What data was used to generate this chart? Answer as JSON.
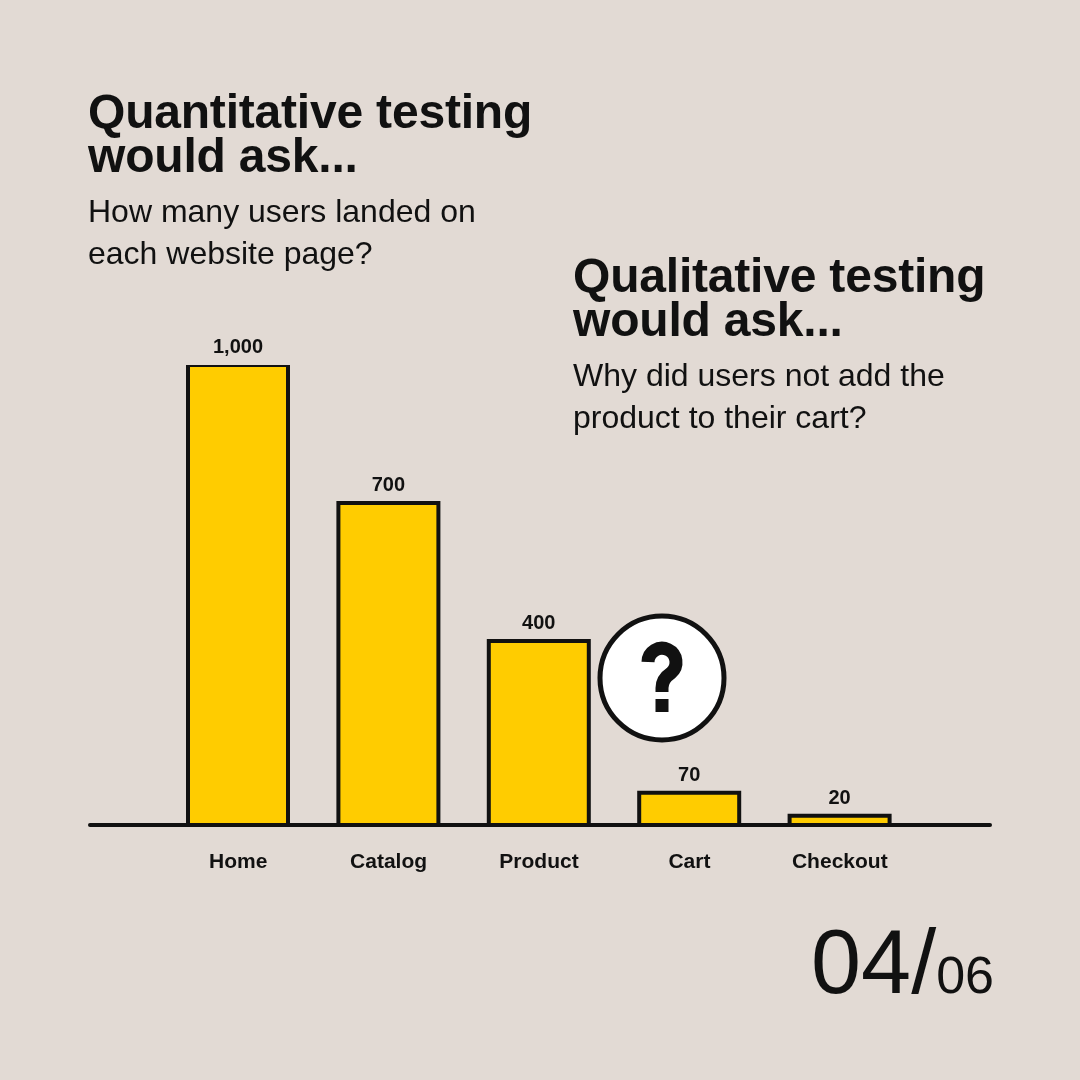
{
  "chart_data": {
    "type": "bar",
    "title": "Quantitative testing would ask...",
    "subtitle": "How many users landed on each website page?",
    "annotations": [
      "Qualitative testing would ask...",
      "Why did users not add the product to their cart?",
      "04/06"
    ],
    "categories": [
      "Home",
      "Catalog",
      "Product",
      "Cart",
      "Checkout"
    ],
    "values": [
      1000,
      700,
      400,
      70,
      20
    ],
    "value_labels": [
      "1,000",
      "700",
      "400",
      "70",
      "20"
    ],
    "color": "#ffcc00",
    "ylim": [
      0,
      1000
    ],
    "tick_labels": "x"
  }
}
